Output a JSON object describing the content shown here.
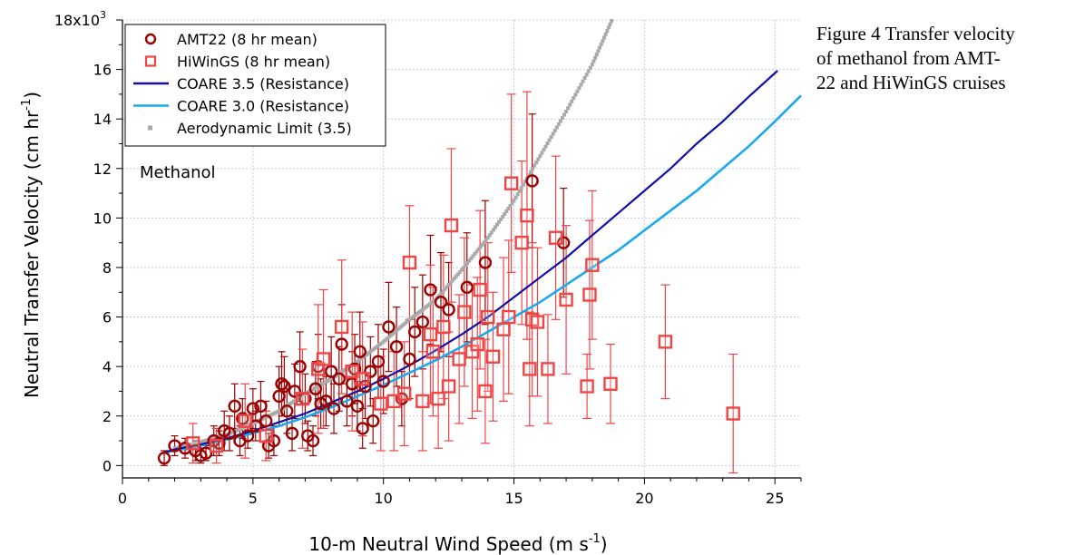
{
  "caption": {
    "line1": "Figure 4 Transfer velocity",
    "line2": "of methanol from AMT-",
    "line3": "22 and HiWinGS cruises"
  },
  "chart_data": {
    "type": "scatter",
    "xlabel_main": "10-m Neutral Wind Speed (m s",
    "xlabel_sup": "-1",
    "xlabel_close": ")",
    "ylabel_main": "Neutral Transfer Velocity (cm hr",
    "ylabel_sup": "-1",
    "ylabel_close": ")",
    "xlim": [
      0,
      26
    ],
    "ylim": [
      -0.5,
      18
    ],
    "xticks": [
      "0",
      "5",
      "10",
      "15",
      "20",
      "25"
    ],
    "xtick_values": [
      0,
      5,
      10,
      15,
      20,
      25
    ],
    "yticks": [
      "0",
      "2",
      "4",
      "6",
      "8",
      "10",
      "12",
      "14",
      "16",
      "18x10"
    ],
    "ytick_values": [
      0,
      2,
      4,
      6,
      8,
      10,
      12,
      14,
      16,
      18
    ],
    "ytick_top_sup": "3",
    "grid": true,
    "legend_position": "top-left",
    "annotation": "Methanol",
    "colors": {
      "amt22": "#990000",
      "hiwings": "#f04545",
      "coare35": "#1010a8",
      "coare30": "#1aa8ee",
      "aero": "#aaaaaa",
      "grid": "#c8c8ee"
    },
    "series": [
      {
        "name": "AMT22 (8 hr mean)",
        "marker": "open-circle",
        "x": [
          1.6,
          2.0,
          2.4,
          2.8,
          3.0,
          3.2,
          3.5,
          3.7,
          3.9,
          4.1,
          4.3,
          4.5,
          4.6,
          4.8,
          5.0,
          5.1,
          5.3,
          5.5,
          5.6,
          5.8,
          6.0,
          6.1,
          6.2,
          6.3,
          6.5,
          6.6,
          6.8,
          7.0,
          7.1,
          7.3,
          7.4,
          7.5,
          7.6,
          7.8,
          8.0,
          8.1,
          8.3,
          8.4,
          8.6,
          8.8,
          8.9,
          9.0,
          9.1,
          9.2,
          9.3,
          9.5,
          9.6,
          9.8,
          10.0,
          10.2,
          10.5,
          10.7,
          11.0,
          11.2,
          11.5,
          11.8,
          12.2,
          12.5,
          13.2,
          13.9,
          15.7,
          16.9
        ],
        "y": [
          0.3,
          0.8,
          0.7,
          0.6,
          0.4,
          0.5,
          1.0,
          0.9,
          1.4,
          1.3,
          2.4,
          1.0,
          1.9,
          1.2,
          2.3,
          1.6,
          2.4,
          1.8,
          0.8,
          1.0,
          2.8,
          3.3,
          3.2,
          2.2,
          1.3,
          3.0,
          4.0,
          2.7,
          1.2,
          1.0,
          3.1,
          4.0,
          2.5,
          2.6,
          3.8,
          2.3,
          3.5,
          4.9,
          2.6,
          3.3,
          3.9,
          2.4,
          4.6,
          1.5,
          3.2,
          3.8,
          1.8,
          4.2,
          3.4,
          5.6,
          4.8,
          2.7,
          4.3,
          5.4,
          5.8,
          7.1,
          6.6,
          6.3,
          7.2,
          8.2,
          11.5,
          9.0
        ],
        "err": [
          0.3,
          0.4,
          0.4,
          0.4,
          0.3,
          0.3,
          0.6,
          0.5,
          0.8,
          0.7,
          0.9,
          0.6,
          0.8,
          0.5,
          0.8,
          0.6,
          1.0,
          0.8,
          0.5,
          0.6,
          1.2,
          1.3,
          1.2,
          0.9,
          0.7,
          1.1,
          1.4,
          1.0,
          0.6,
          0.6,
          1.1,
          1.3,
          1.0,
          1.0,
          1.4,
          1.0,
          1.3,
          1.6,
          1.0,
          1.3,
          1.4,
          1.0,
          1.6,
          0.8,
          1.3,
          1.4,
          0.9,
          1.5,
          1.3,
          1.8,
          1.6,
          1.1,
          1.6,
          1.8,
          1.9,
          2.2,
          2.0,
          1.9,
          2.2,
          2.5,
          2.7,
          2.2
        ]
      },
      {
        "name": "HiWinGS (8 hr mean)",
        "marker": "open-square",
        "x": [
          2.7,
          3.6,
          4.7,
          5.5,
          6.9,
          7.5,
          7.7,
          8.4,
          8.8,
          9.2,
          9.9,
          10.4,
          10.8,
          11.0,
          11.5,
          11.8,
          11.9,
          12.1,
          12.3,
          12.5,
          12.6,
          12.9,
          13.1,
          13.4,
          13.6,
          13.7,
          13.9,
          14.0,
          14.2,
          14.6,
          14.8,
          14.9,
          15.3,
          15.5,
          15.6,
          15.7,
          15.9,
          16.3,
          16.6,
          17.0,
          17.8,
          17.9,
          18.0,
          18.7,
          20.8,
          23.4
        ],
        "y": [
          0.9,
          0.8,
          1.8,
          1.2,
          2.7,
          3.9,
          4.3,
          5.6,
          3.8,
          3.5,
          2.5,
          2.6,
          2.9,
          8.2,
          2.6,
          5.3,
          4.6,
          2.7,
          5.6,
          3.2,
          9.7,
          4.3,
          6.2,
          4.6,
          4.9,
          7.1,
          3.0,
          6.0,
          4.4,
          5.5,
          6.0,
          11.4,
          9.0,
          10.1,
          3.9,
          5.9,
          5.8,
          3.9,
          9.2,
          6.7,
          3.2,
          6.9,
          8.1,
          3.3,
          5.0,
          2.1
        ],
        "err": [
          0.8,
          0.7,
          1.5,
          1.0,
          2.0,
          2.6,
          2.8,
          2.7,
          2.4,
          2.3,
          1.9,
          2.0,
          2.1,
          2.3,
          2.0,
          2.8,
          2.6,
          2.0,
          2.9,
          2.2,
          3.1,
          2.6,
          3.0,
          2.7,
          2.7,
          3.2,
          2.1,
          3.0,
          2.6,
          2.9,
          3.1,
          3.6,
          3.3,
          5.0,
          2.3,
          3.1,
          3.0,
          2.2,
          3.3,
          3.0,
          1.3,
          3.0,
          3.0,
          1.6,
          2.3,
          2.4
        ]
      },
      {
        "name": "COARE 3.5 (Resistance)",
        "marker": "line",
        "x": [
          1.5,
          2,
          3,
          4,
          5,
          6,
          7,
          8,
          9,
          10,
          11,
          12,
          13,
          14,
          15,
          16,
          17,
          18,
          19,
          20,
          21,
          22,
          23,
          24,
          25.1
        ],
        "y": [
          0.5,
          0.65,
          0.85,
          1.1,
          1.4,
          1.75,
          2.1,
          2.55,
          3.0,
          3.5,
          4.05,
          4.65,
          5.3,
          6.0,
          6.8,
          7.6,
          8.4,
          9.3,
          10.2,
          11.1,
          12.0,
          13.0,
          13.9,
          14.9,
          15.95
        ]
      },
      {
        "name": "COARE 3.0 (Resistance)",
        "marker": "line",
        "x": [
          1.5,
          2,
          3,
          4,
          5,
          6,
          7,
          8,
          9,
          10,
          11,
          12,
          13,
          14,
          15,
          16,
          17,
          18,
          19,
          20,
          21,
          22,
          23,
          24,
          25,
          26
        ],
        "y": [
          0.5,
          0.6,
          0.8,
          1.05,
          1.3,
          1.6,
          1.95,
          2.35,
          2.8,
          3.25,
          3.75,
          4.25,
          4.8,
          5.4,
          6.0,
          6.6,
          7.3,
          8.0,
          8.7,
          9.5,
          10.3,
          11.1,
          12.0,
          12.9,
          13.9,
          14.95
        ]
      },
      {
        "name": "Aerodynamic Limit (3.5)",
        "marker": "dots",
        "x": [
          2,
          3,
          4,
          5,
          6,
          7,
          8,
          9,
          10,
          11,
          12,
          13,
          14,
          15,
          16,
          17,
          18,
          18.8
        ],
        "y": [
          0.7,
          0.95,
          1.25,
          1.7,
          2.2,
          2.9,
          3.5,
          4.2,
          5.0,
          5.9,
          6.7,
          7.9,
          9.2,
          10.7,
          12.5,
          14.3,
          16.2,
          18.1
        ]
      }
    ]
  }
}
